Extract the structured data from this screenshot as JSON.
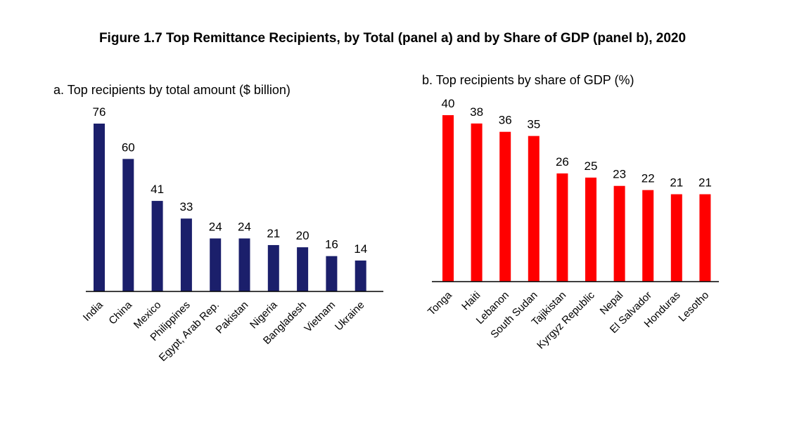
{
  "figure_title": "Figure 1.7 Top Remittance Recipients, by Total (panel a) and by Share of GDP (panel b), 2020",
  "colors": {
    "panel_a_bar": "#1b1f6b",
    "panel_b_bar": "#ff0000",
    "axis": "#000000"
  },
  "chart_data": [
    {
      "type": "bar",
      "title": "a. Top recipients by total amount ($ billion)",
      "categories": [
        "India",
        "China",
        "Mexico",
        "Philippines",
        "Egypt, Arab Rep.",
        "Pakistan",
        "Nigeria",
        "Bangladesh",
        "Vietnam",
        "Ukraine"
      ],
      "values": [
        76,
        60,
        41,
        33,
        24,
        24,
        21,
        20,
        16,
        14
      ],
      "ylim": [
        0,
        76
      ],
      "grid": false,
      "data_labels": true
    },
    {
      "type": "bar",
      "title": "b. Top recipients by share of GDP (%)",
      "categories": [
        "Tonga",
        "Haiti",
        "Lebanon",
        "South Sudan",
        "Tajikistan",
        "Kyrgyz Republic",
        "Nepal",
        "El Salvador",
        "Honduras",
        "Lesotho"
      ],
      "values": [
        40,
        38,
        36,
        35,
        26,
        25,
        23,
        22,
        21,
        21
      ],
      "ylim": [
        0,
        40
      ],
      "grid": false,
      "data_labels": true
    }
  ]
}
